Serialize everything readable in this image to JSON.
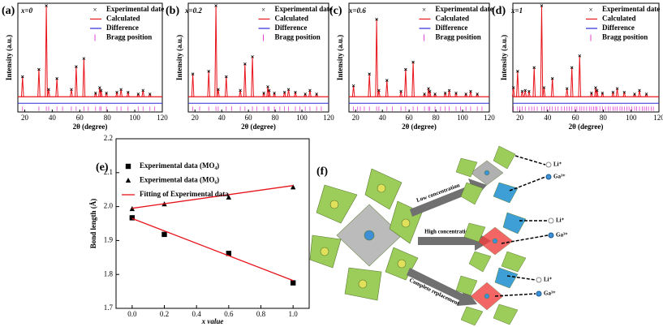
{
  "chart_data": [
    {
      "type": "xrd",
      "label": "(a)",
      "composition": "x=0",
      "xlabel": "2θ (degree)",
      "ylabel": "Intensity (a.u.)",
      "xlim": [
        15,
        120
      ],
      "xticks": [
        20,
        40,
        60,
        80,
        100,
        120
      ],
      "series": [
        {
          "name": "Experimental date",
          "color": "#000000"
        },
        {
          "name": "Calculated",
          "color": "#e8141b"
        },
        {
          "name": "Difference",
          "color": "#2b2bd6"
        },
        {
          "name": "Bragg position",
          "color": "#e040d0"
        }
      ],
      "x": [
        18.4,
        30.3,
        35.7,
        37.4,
        43.4,
        53.9,
        57.4,
        63.0,
        71.5,
        74.5,
        75.5,
        79.4,
        87.0,
        90.0,
        95.1,
        102.5,
        106.0,
        111.0
      ],
      "values": [
        0.22,
        0.3,
        1.0,
        0.08,
        0.2,
        0.08,
        0.33,
        0.42,
        0.04,
        0.1,
        0.07,
        0.04,
        0.05,
        0.08,
        0.05,
        0.03,
        0.07,
        0.03
      ],
      "bragg_x": [
        18.4,
        30.3,
        35.7,
        37.4,
        43.4,
        47.5,
        53.9,
        57.4,
        63.0,
        66.2,
        71.5,
        74.5,
        75.5,
        79.4,
        87.0,
        90.0,
        95.1,
        102.5,
        106.0,
        111.0,
        114.5
      ]
    },
    {
      "type": "xrd",
      "label": "(b)",
      "composition": "x=0.2",
      "xlabel": "2θ (degree)",
      "ylabel": "Intensity (a.u.)",
      "xlim": [
        15,
        120
      ],
      "xticks": [
        20,
        40,
        60,
        80,
        100,
        120
      ],
      "series": [
        {
          "name": "Experimental date",
          "color": "#000000"
        },
        {
          "name": "Calculated",
          "color": "#e8141b"
        },
        {
          "name": "Difference",
          "color": "#2b2bd6"
        },
        {
          "name": "Bragg position",
          "color": "#e040d0"
        }
      ],
      "x": [
        18.4,
        30.3,
        35.7,
        37.4,
        43.4,
        53.9,
        57.4,
        63.0,
        71.5,
        74.5,
        75.5,
        79.4,
        87.0,
        90.0,
        95.1,
        102.5,
        106.0,
        111.0
      ],
      "values": [
        0.25,
        0.28,
        1.0,
        0.08,
        0.22,
        0.07,
        0.36,
        0.44,
        0.04,
        0.11,
        0.07,
        0.04,
        0.05,
        0.08,
        0.05,
        0.03,
        0.07,
        0.03
      ],
      "bragg_x": [
        18.4,
        23.5,
        30.3,
        35.7,
        37.4,
        43.4,
        47.5,
        53.9,
        57.4,
        63.0,
        66.2,
        71.5,
        74.5,
        75.5,
        79.4,
        83.5,
        87.0,
        90.0,
        95.1,
        98.5,
        102.5,
        106.0,
        111.0,
        114.5
      ]
    },
    {
      "type": "xrd",
      "label": "(c)",
      "composition": "x=0.6",
      "xlabel": "2θ (degree)",
      "ylabel": "Intensity (a.u.)",
      "xlim": [
        15,
        120
      ],
      "xticks": [
        20,
        40,
        60,
        80,
        100,
        120
      ],
      "series": [
        {
          "name": "Experimental date",
          "color": "#000000"
        },
        {
          "name": "Calculated",
          "color": "#e8141b"
        },
        {
          "name": "Difference",
          "color": "#2b2bd6"
        },
        {
          "name": "Bragg position",
          "color": "#e040d0"
        }
      ],
      "x": [
        18.4,
        30.3,
        35.7,
        37.4,
        43.4,
        53.9,
        57.4,
        63.0,
        71.5,
        74.5,
        75.5,
        79.4,
        87.0,
        90.0,
        95.1,
        102.5,
        106.0,
        111.0
      ],
      "values": [
        0.12,
        0.25,
        0.85,
        0.07,
        0.18,
        0.06,
        0.3,
        0.38,
        0.03,
        0.09,
        0.06,
        0.03,
        0.04,
        0.07,
        0.04,
        0.03,
        0.06,
        0.03
      ],
      "bragg_x": [
        18.4,
        21.5,
        23.5,
        26.5,
        30.3,
        35.7,
        37.4,
        43.4,
        47.5,
        53.9,
        57.4,
        63.0,
        66.2,
        71.5,
        74.5,
        75.5,
        79.4,
        83.5,
        87.0,
        90.0,
        95.1,
        98.5,
        102.5,
        106.0,
        111.0,
        114.5
      ]
    },
    {
      "type": "xrd",
      "label": "(d)",
      "composition": "x=1",
      "xlabel": "2θ (degree)",
      "ylabel": "Intensity (a.u.)",
      "xlim": [
        15,
        120
      ],
      "xticks": [
        20,
        40,
        60,
        80,
        100,
        120
      ],
      "series": [
        {
          "name": "Experimental date",
          "color": "#000000"
        },
        {
          "name": "Calculated",
          "color": "#e8141b"
        },
        {
          "name": "Difference",
          "color": "#2b2bd6"
        },
        {
          "name": "Bragg position",
          "color": "#e040d0"
        }
      ],
      "x": [
        15.4,
        18.4,
        21.7,
        23.9,
        26.6,
        30.3,
        35.7,
        37.4,
        43.4,
        53.9,
        57.4,
        63.0,
        71.5,
        74.5,
        75.5,
        79.4,
        87.0,
        90.0,
        95.1,
        102.5,
        106.0,
        111.0
      ],
      "values": [
        0.1,
        0.28,
        0.06,
        0.07,
        0.06,
        0.32,
        1.0,
        0.1,
        0.2,
        0.09,
        0.32,
        0.45,
        0.04,
        0.1,
        0.07,
        0.04,
        0.05,
        0.09,
        0.05,
        0.03,
        0.07,
        0.03
      ],
      "bragg_x": [
        15.4,
        18.4,
        20.0,
        21.7,
        23.9,
        26.6,
        28.5,
        30.3,
        32.5,
        35.7,
        37.4,
        39.5,
        41.5,
        43.4,
        45.5,
        47.5,
        50.0,
        52.0,
        53.9,
        55.5,
        57.4,
        59.5,
        61.0,
        63.0,
        64.5,
        66.2,
        68.0,
        70.0,
        71.5,
        73.0,
        74.5,
        75.5,
        77.5,
        79.4,
        81.5,
        83.5,
        85.0,
        87.0,
        88.5,
        90.0,
        92.0,
        93.5,
        95.1,
        97.0,
        98.5,
        100.5,
        102.5,
        104.0,
        106.0,
        108.0,
        109.5,
        111.0,
        112.5,
        114.5,
        116.0
      ]
    },
    {
      "type": "scatter",
      "label": "(e)",
      "xlabel": "x value",
      "ylabel": "Bond length (Å)",
      "xlim": [
        -0.1,
        1.1
      ],
      "ylim": [
        1.7,
        2.2
      ],
      "xticks": [
        {
          "value": 0,
          "label": "0.0"
        },
        0.2,
        0.4,
        0.6,
        0.8,
        {
          "value": 1,
          "label": "1.0"
        }
      ],
      "yticks": [
        1.7,
        1.8,
        1.9,
        {
          "value": 2,
          "label": "2.0"
        },
        2.1,
        2.2
      ],
      "series": [
        {
          "name": "Experimental data (MO₄)",
          "marker": "square",
          "color": "#000000",
          "x": [
            0,
            0.2,
            0.6,
            1
          ],
          "values": [
            1.967,
            1.918,
            1.862,
            1.775
          ]
        },
        {
          "name": "Experimental data (MO₆)",
          "marker": "triangle",
          "color": "#000000",
          "x": [
            0,
            0.2,
            0.6,
            1
          ],
          "values": [
            1.993,
            2.007,
            2.027,
            2.057
          ]
        },
        {
          "name": "Fitting of Experimental data",
          "marker": "line",
          "color": "#e8141b",
          "x": [
            0,
            1,
            null,
            0,
            1
          ],
          "values": [
            1.995,
            2.062,
            null,
            1.965,
            1.782
          ]
        }
      ]
    }
  ],
  "diagram": {
    "label": "(f)",
    "arrows": [
      "Low concentration",
      "High concentration",
      "Complete replacement"
    ],
    "legends": [
      {
        "li": "Li⁺",
        "ga": "Ga³⁺"
      },
      {
        "li": "Li⁺",
        "ga": "Ga³⁺"
      },
      {
        "li": "Li⁺",
        "ga": "Ga³⁺"
      }
    ]
  }
}
